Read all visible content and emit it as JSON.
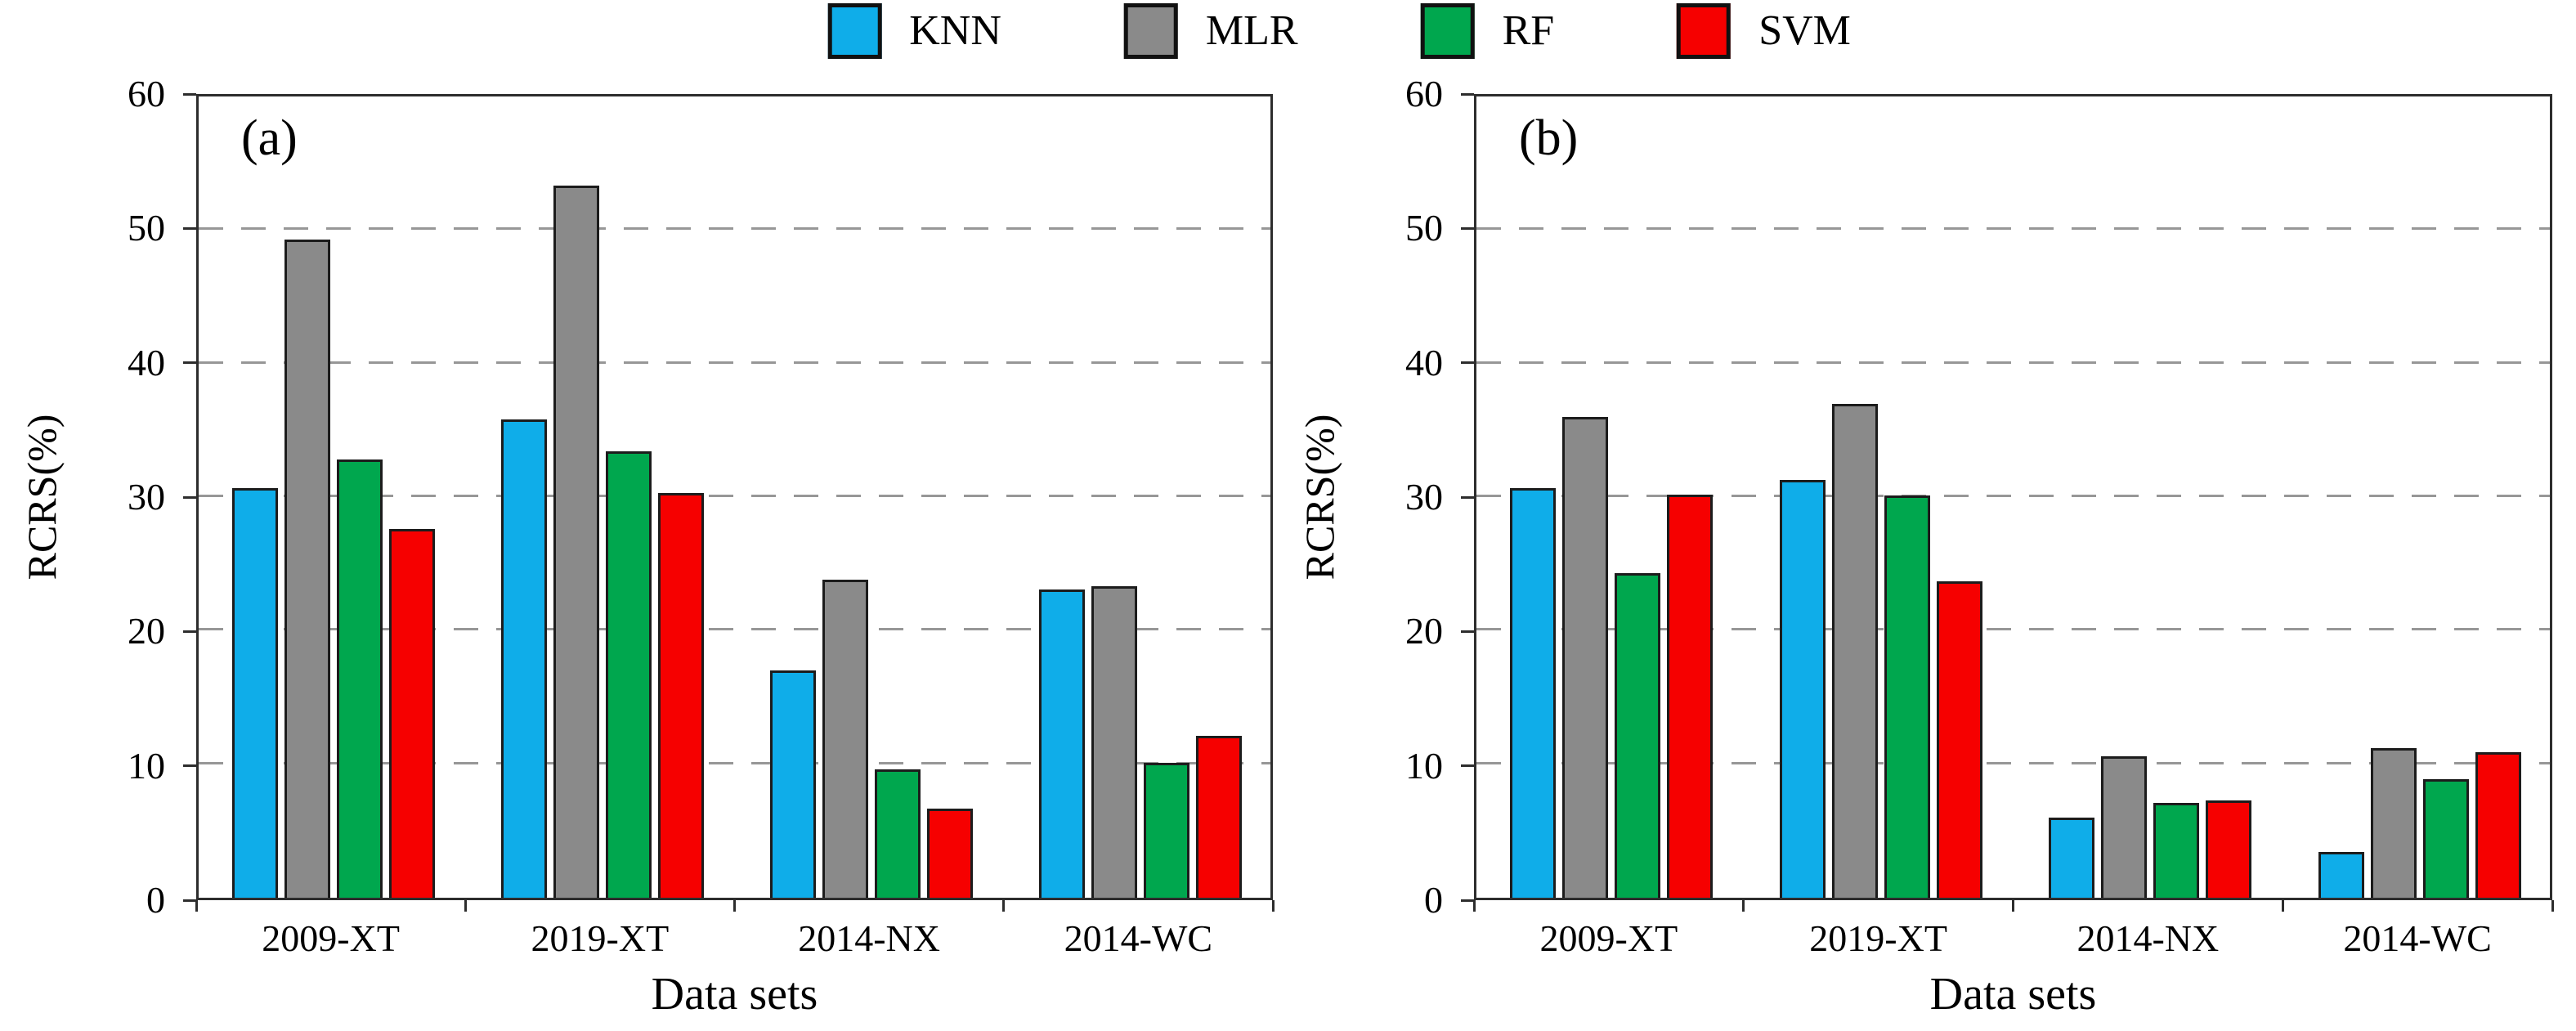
{
  "figure": {
    "legend": [
      {
        "label": "KNN",
        "color": "#0FADE9"
      },
      {
        "label": "MLR",
        "color": "#8A8A8A"
      },
      {
        "label": "RF",
        "color": "#00A74E"
      },
      {
        "label": "SVM",
        "color": "#F60000"
      }
    ]
  },
  "chart_data": [
    {
      "type": "bar",
      "panel_label": "(a)",
      "xlabel": "Data sets",
      "ylabel": "RCRS(%)",
      "ylim": [
        0,
        60
      ],
      "yticks": [
        0,
        10,
        20,
        30,
        40,
        50,
        60
      ],
      "grid": "horizontal dashed lines at 10,20,30,40,50",
      "legend_position": "top-center shared",
      "categories": [
        "2009-XT",
        "2019-XT",
        "2014-NX",
        "2014-WC"
      ],
      "series": [
        {
          "name": "KNN",
          "color": "#0FADE9",
          "values": [
            30.7,
            35.8,
            17.0,
            23.1
          ]
        },
        {
          "name": "MLR",
          "color": "#8A8A8A",
          "values": [
            49.3,
            53.3,
            23.8,
            23.3
          ]
        },
        {
          "name": "RF",
          "color": "#00A74E",
          "values": [
            32.8,
            33.4,
            9.6,
            10.1
          ]
        },
        {
          "name": "SVM",
          "color": "#F60000",
          "values": [
            27.6,
            30.3,
            6.7,
            12.1
          ]
        }
      ]
    },
    {
      "type": "bar",
      "panel_label": "(b)",
      "xlabel": "Data sets",
      "ylabel": "RCRS(%)",
      "ylim": [
        0,
        60
      ],
      "yticks": [
        0,
        10,
        20,
        30,
        40,
        50,
        60
      ],
      "grid": "horizontal dashed lines at 10,20,30,40,50",
      "legend_position": "top-center shared",
      "categories": [
        "2009-XT",
        "2019-XT",
        "2014-NX",
        "2014-WC"
      ],
      "series": [
        {
          "name": "KNN",
          "color": "#0FADE9",
          "values": [
            30.7,
            31.3,
            6.0,
            3.4
          ]
        },
        {
          "name": "MLR",
          "color": "#8A8A8A",
          "values": [
            36.0,
            37.0,
            10.6,
            11.2
          ]
        },
        {
          "name": "RF",
          "color": "#00A74E",
          "values": [
            24.3,
            30.1,
            7.1,
            8.9
          ]
        },
        {
          "name": "SVM",
          "color": "#F60000",
          "values": [
            30.2,
            23.7,
            7.3,
            10.9
          ]
        }
      ]
    }
  ]
}
